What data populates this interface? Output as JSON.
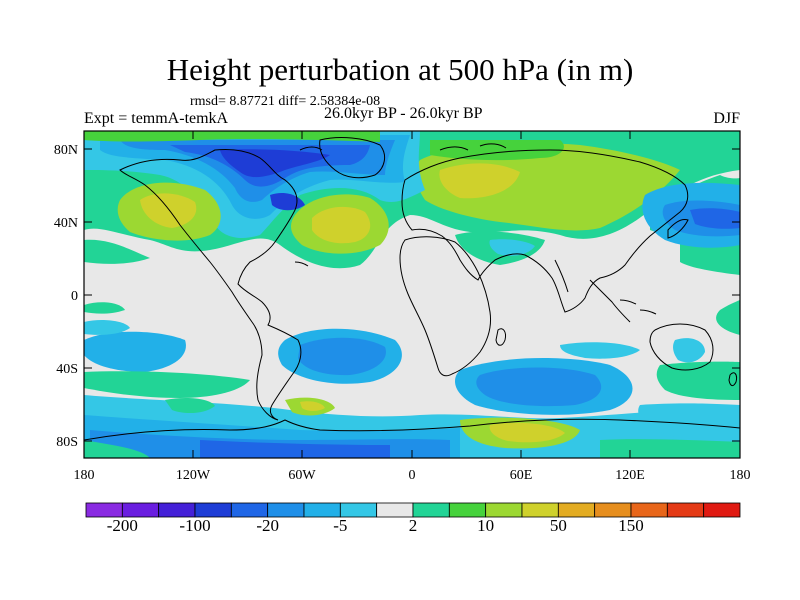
{
  "title": "Height perturbation at 500 hPa (in m)",
  "stats": "rmsd= 8.87721 diff= 2.58384e-08",
  "left_label": "Expt = temmA-temkA",
  "center_label": "26.0kyr BP - 26.0kyr BP",
  "right_label": "DJF",
  "axes": {
    "lat_ticks": [
      "80N",
      "40N",
      "0",
      "40S",
      "80S"
    ],
    "lon_ticks": [
      "180",
      "120W",
      "60W",
      "0",
      "60E",
      "120E",
      "180"
    ]
  },
  "colorbar": {
    "colors": [
      "#8a2be2",
      "#6a1ee0",
      "#4420d8",
      "#1e3dd6",
      "#1f66e6",
      "#1f8fe8",
      "#22b0e8",
      "#34c7e6",
      "#e8e8e8",
      "#22d496",
      "#46d23c",
      "#9cd832",
      "#cfd12c",
      "#e3ac22",
      "#e68e1e",
      "#e8661a",
      "#e43a16",
      "#e01a12"
    ],
    "labels": [
      "-200",
      "-100",
      "-20",
      "-5",
      "2",
      "10",
      "50",
      "150"
    ]
  },
  "palette": {
    "neutral": "#e8e8e8",
    "ocean_lines": "#000000"
  }
}
